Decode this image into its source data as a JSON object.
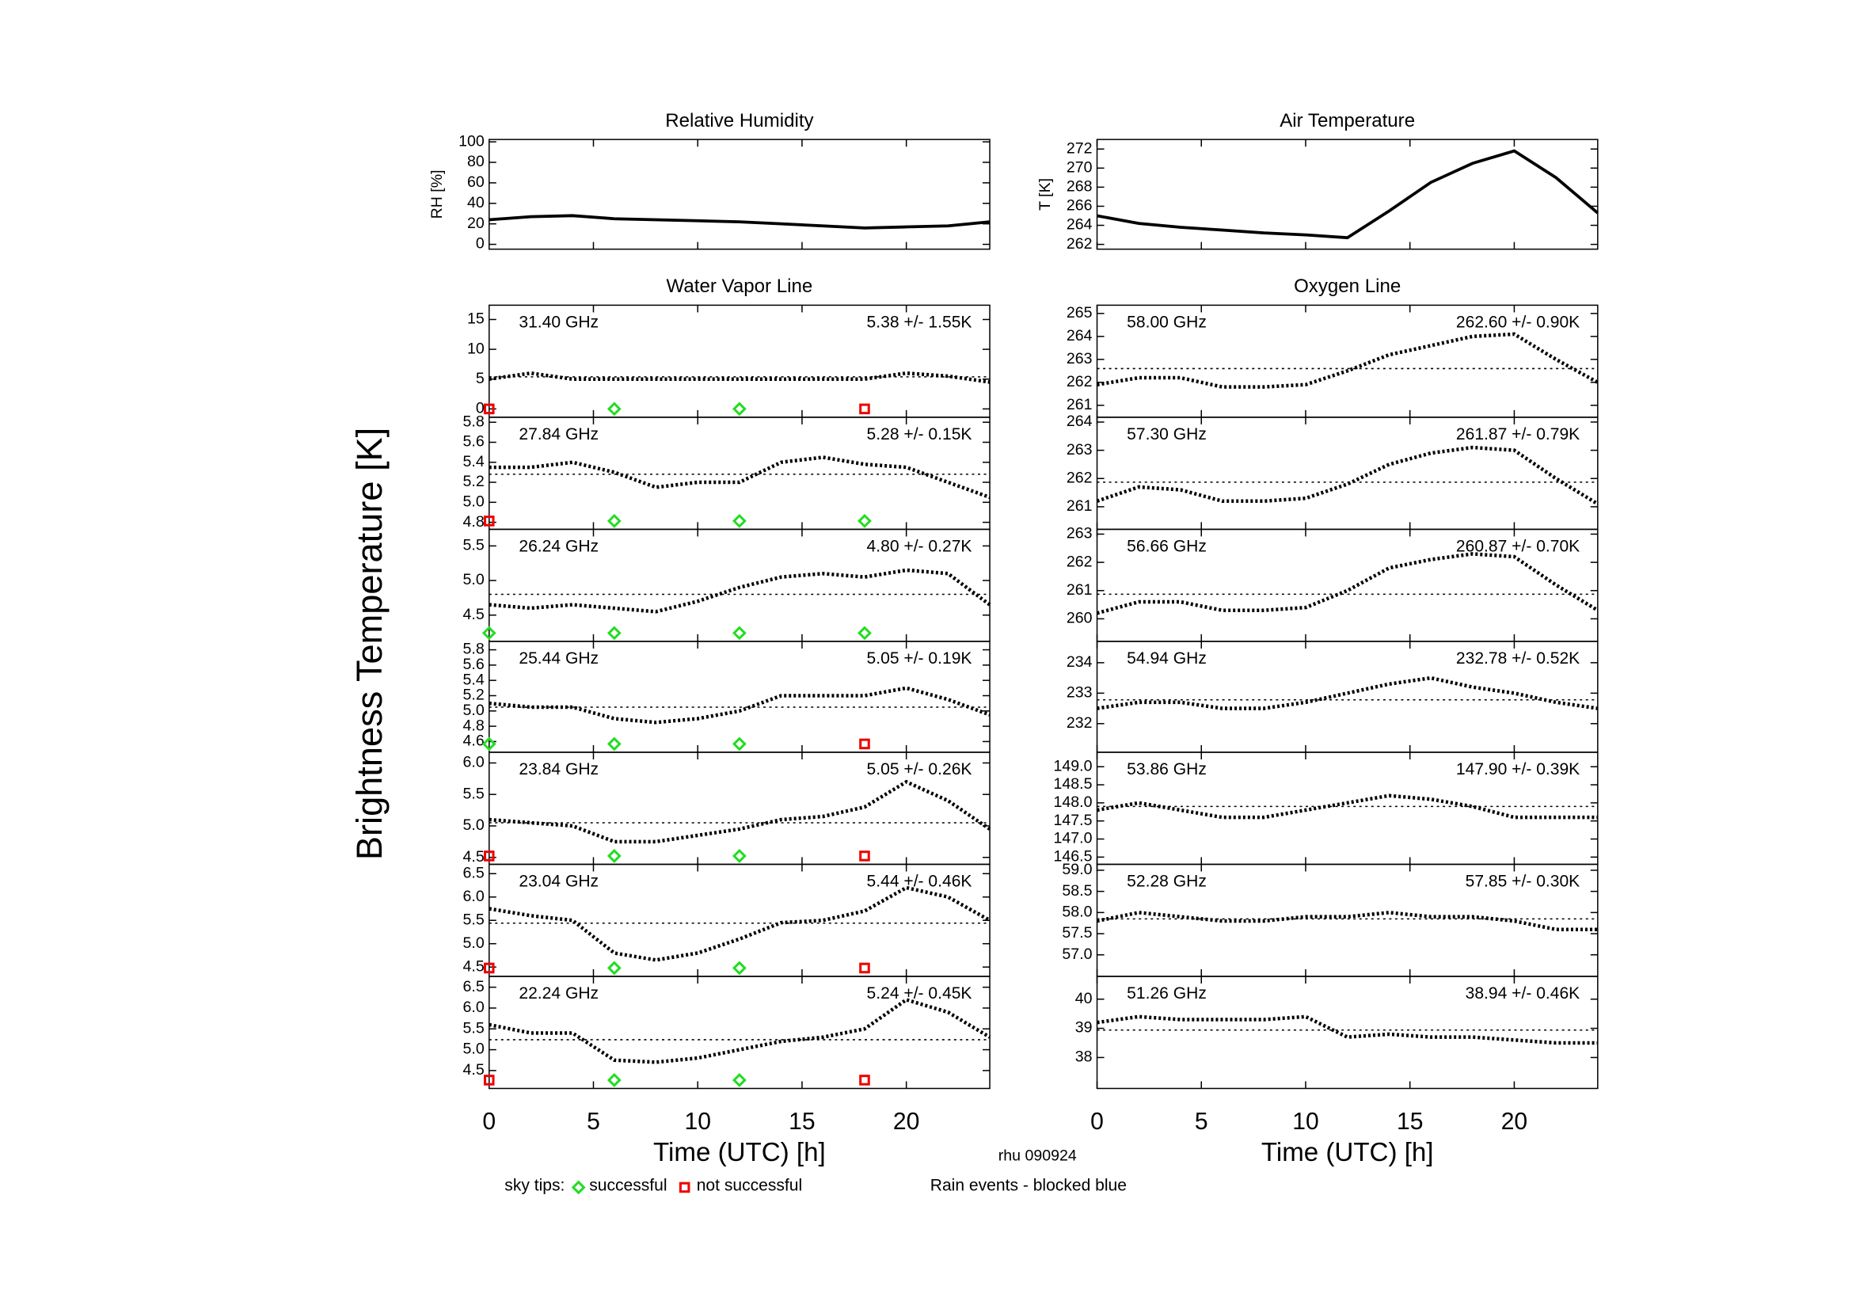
{
  "figure": {
    "ylabel": "Brightness Temperature [K]",
    "footer": "rhu 090924",
    "legend": {
      "label": "sky tips:",
      "items": [
        {
          "name": "successful",
          "color": "#22dd22"
        },
        {
          "name": "not successful",
          "color": "#ee0000"
        }
      ]
    },
    "rain_note": {
      "text": "Rain events - blocked blue",
      "color": "#33ddff"
    }
  },
  "chart_data": [
    {
      "type": "line",
      "title": "Relative Humidity",
      "ylabel": "RH [%]",
      "xlim": [
        0,
        24
      ],
      "xticks": [
        0,
        5,
        10,
        15,
        20
      ],
      "ylim": [
        -4.7,
        102.3
      ],
      "yticks": [
        0,
        20,
        40,
        60,
        80,
        100
      ],
      "x": [
        0,
        2,
        4,
        6,
        8,
        10,
        12,
        14,
        16,
        18,
        20,
        22,
        24
      ],
      "series": [
        {
          "color": "#000000",
          "values": [
            24,
            27,
            28,
            25,
            24,
            23,
            22,
            20,
            18,
            16,
            17,
            18,
            22
          ]
        }
      ]
    },
    {
      "type": "line",
      "title": "Air Temperature",
      "ylabel": "T [K]",
      "xlim": [
        0,
        24
      ],
      "xticks": [
        0,
        5,
        10,
        15,
        20
      ],
      "ylim": [
        261.5,
        273
      ],
      "yticks": [
        262,
        264,
        266,
        268,
        270,
        272
      ],
      "x": [
        0,
        2,
        4,
        6,
        8,
        10,
        12,
        14,
        16,
        18,
        20,
        22,
        24
      ],
      "series": [
        {
          "color": "#000000",
          "values": [
            265,
            264.2,
            263.8,
            263.5,
            263.2,
            263.0,
            262.7,
            265.5,
            268.5,
            270.5,
            271.8,
            269,
            265.3
          ]
        }
      ]
    },
    {
      "type": "scatter",
      "title": "Water Vapor Line",
      "xlim": [
        0,
        24
      ],
      "xticks": [
        0,
        5,
        10,
        15,
        20
      ],
      "ylim": [
        -1.4,
        17.4
      ],
      "yticks": [
        0,
        5,
        10,
        15
      ],
      "x": [
        0,
        2,
        4,
        6,
        8,
        10,
        12,
        14,
        16,
        18,
        20,
        22,
        24
      ],
      "series": [
        {
          "name": "31.40 GHz",
          "color": "#000000",
          "values": [
            5,
            6,
            5,
            5,
            5,
            5,
            5,
            5,
            5,
            5,
            6,
            5.5,
            4.5
          ]
        }
      ],
      "mean": 5.38,
      "annotation": "5.38 +/-  1.55K",
      "label_color": "#ff0000",
      "sky_tips": {
        "x": [
          0,
          6,
          12,
          18
        ],
        "successful": [
          false,
          true,
          true,
          false
        ]
      }
    },
    {
      "type": "scatter",
      "xlim": [
        0,
        24
      ],
      "xticks": [
        0,
        5,
        10,
        15,
        20
      ],
      "ylim": [
        4.73,
        5.85
      ],
      "yticks": [
        4.8,
        {
          "value": 5,
          "label": "5.0"
        },
        5.2,
        5.4,
        5.6,
        5.8
      ],
      "x": [
        0,
        2,
        4,
        6,
        8,
        10,
        12,
        14,
        16,
        18,
        20,
        22,
        24
      ],
      "series": [
        {
          "name": "27.84 GHz",
          "color": "#000000",
          "values": [
            5.35,
            5.35,
            5.4,
            5.3,
            5.15,
            5.2,
            5.2,
            5.4,
            5.45,
            5.38,
            5.35,
            5.2,
            5.05
          ]
        }
      ],
      "mean": 5.28,
      "annotation": "5.28 +/-  0.15K",
      "label_color": "#ff0000",
      "sky_tips": {
        "x": [
          0,
          6,
          12,
          18
        ],
        "successful": [
          false,
          true,
          true,
          true
        ]
      }
    },
    {
      "type": "scatter",
      "xlim": [
        0,
        24
      ],
      "xticks": [
        0,
        5,
        10,
        15,
        20
      ],
      "ylim": [
        4.12,
        5.74
      ],
      "yticks": [
        4.5,
        {
          "value": 5,
          "label": "5.0"
        },
        5.5
      ],
      "x": [
        0,
        2,
        4,
        6,
        8,
        10,
        12,
        14,
        16,
        18,
        20,
        22,
        24
      ],
      "series": [
        {
          "name": "26.24 GHz",
          "color": "#000000",
          "values": [
            4.65,
            4.6,
            4.65,
            4.6,
            4.55,
            4.7,
            4.9,
            5.05,
            5.1,
            5.05,
            5.15,
            5.1,
            4.65
          ]
        }
      ],
      "mean": 4.8,
      "annotation": "4.80 +/-  0.27K",
      "label_color": "#ff0000",
      "sky_tips": {
        "x": [
          0,
          6,
          12,
          18
        ],
        "successful": [
          true,
          true,
          true,
          true
        ]
      }
    },
    {
      "type": "scatter",
      "xlim": [
        0,
        24
      ],
      "xticks": [
        0,
        5,
        10,
        15,
        20
      ],
      "ylim": [
        4.46,
        5.91
      ],
      "yticks": [
        4.6,
        4.8,
        {
          "value": 5,
          "label": "5.0"
        },
        5.2,
        5.4,
        5.6,
        5.8
      ],
      "x": [
        0,
        2,
        4,
        6,
        8,
        10,
        12,
        14,
        16,
        18,
        20,
        22,
        24
      ],
      "series": [
        {
          "name": "25.44 GHz",
          "color": "#000000",
          "values": [
            5.1,
            5.05,
            5.05,
            4.9,
            4.85,
            4.9,
            5.0,
            5.2,
            5.2,
            5.2,
            5.3,
            5.15,
            4.95
          ]
        }
      ],
      "mean": 5.05,
      "annotation": "5.05 +/-  0.19K",
      "label_color": "#ff0000",
      "sky_tips": {
        "x": [
          0,
          6,
          12,
          18
        ],
        "successful": [
          true,
          true,
          true,
          false
        ]
      }
    },
    {
      "type": "scatter",
      "xlim": [
        0,
        24
      ],
      "xticks": [
        0,
        5,
        10,
        15,
        20
      ],
      "ylim": [
        4.39,
        6.17
      ],
      "yticks": [
        4.5,
        {
          "value": 5,
          "label": "5.0"
        },
        5.5,
        {
          "value": 6,
          "label": "6.0"
        }
      ],
      "x": [
        0,
        2,
        4,
        6,
        8,
        10,
        12,
        14,
        16,
        18,
        20,
        22,
        24
      ],
      "series": [
        {
          "name": "23.84 GHz",
          "color": "#000000",
          "values": [
            5.1,
            5.05,
            5.0,
            4.75,
            4.75,
            4.85,
            4.95,
            5.1,
            5.15,
            5.3,
            5.7,
            5.4,
            4.95
          ]
        }
      ],
      "mean": 5.05,
      "annotation": "5.05 +/-  0.26K",
      "label_color": "#ff0000",
      "sky_tips": {
        "x": [
          0,
          6,
          12,
          18
        ],
        "successful": [
          false,
          true,
          true,
          false
        ]
      }
    },
    {
      "type": "scatter",
      "xlim": [
        0,
        24
      ],
      "xticks": [
        0,
        5,
        10,
        15,
        20
      ],
      "ylim": [
        4.3,
        6.7
      ],
      "yticks": [
        4.5,
        {
          "value": 5,
          "label": "5.0"
        },
        5.5,
        {
          "value": 6,
          "label": "6.0"
        },
        6.5
      ],
      "x": [
        0,
        2,
        4,
        6,
        8,
        10,
        12,
        14,
        16,
        18,
        20,
        22,
        24
      ],
      "series": [
        {
          "name": "23.04 GHz",
          "color": "#000000",
          "values": [
            5.75,
            5.6,
            5.5,
            4.8,
            4.65,
            4.8,
            5.1,
            5.45,
            5.5,
            5.7,
            6.2,
            6.0,
            5.5
          ]
        }
      ],
      "mean": 5.44,
      "annotation": "5.44 +/-  0.46K",
      "label_color": "#ff0000",
      "sky_tips": {
        "x": [
          0,
          6,
          12,
          18
        ],
        "successful": [
          false,
          true,
          true,
          false
        ]
      }
    },
    {
      "type": "scatter",
      "xlabel": "Time (UTC) [h]",
      "xlim": [
        0,
        24
      ],
      "xticks": [
        0,
        5,
        10,
        15,
        20
      ],
      "ylim": [
        4.07,
        6.76
      ],
      "yticks": [
        4.5,
        {
          "value": 5,
          "label": "5.0"
        },
        5.5,
        {
          "value": 6,
          "label": "6.0"
        },
        6.5
      ],
      "x": [
        0,
        2,
        4,
        6,
        8,
        10,
        12,
        14,
        16,
        18,
        20,
        22,
        24
      ],
      "series": [
        {
          "name": "22.24 GHz",
          "color": "#000000",
          "values": [
            5.6,
            5.4,
            5.4,
            4.75,
            4.7,
            4.8,
            5.0,
            5.2,
            5.3,
            5.5,
            6.2,
            5.9,
            5.3
          ]
        }
      ],
      "mean": 5.24,
      "annotation": "5.24 +/-  0.45K",
      "label_color": "#ff0000",
      "sky_tips": {
        "x": [
          0,
          6,
          12,
          18
        ],
        "successful": [
          false,
          true,
          true,
          false
        ]
      }
    },
    {
      "type": "scatter",
      "title": "Oxygen Line",
      "xlim": [
        0,
        24
      ],
      "xticks": [
        0,
        5,
        10,
        15,
        20
      ],
      "ylim": [
        260.48,
        265.36
      ],
      "yticks": [
        261,
        262,
        263,
        264,
        265
      ],
      "x": [
        0,
        2,
        4,
        6,
        8,
        10,
        12,
        14,
        16,
        18,
        20,
        22,
        24
      ],
      "series": [
        {
          "name": "58.00 GHz",
          "color": "#000000",
          "values": [
            261.9,
            262.2,
            262.2,
            261.8,
            261.8,
            261.9,
            262.5,
            263.2,
            263.6,
            264.0,
            264.1,
            263.0,
            262.0
          ]
        }
      ],
      "mean": 262.6,
      "annotation": "262.60 +/-  0.90K",
      "label_color": "#ff0000"
    },
    {
      "type": "scatter",
      "xlim": [
        0,
        24
      ],
      "xticks": [
        0,
        5,
        10,
        15,
        20
      ],
      "ylim": [
        260.2,
        264.17
      ],
      "yticks": [
        261,
        262,
        263,
        264
      ],
      "x": [
        0,
        2,
        4,
        6,
        8,
        10,
        12,
        14,
        16,
        18,
        20,
        22,
        24
      ],
      "series": [
        {
          "name": "57.30 GHz",
          "color": "#000000",
          "values": [
            261.2,
            261.7,
            261.6,
            261.2,
            261.2,
            261.3,
            261.8,
            262.5,
            262.9,
            263.1,
            263.0,
            262.0,
            261.1
          ]
        }
      ],
      "mean": 261.87,
      "annotation": "261.87 +/-  0.79K",
      "label_color": "#ff0000"
    },
    {
      "type": "scatter",
      "xlim": [
        0,
        24
      ],
      "xticks": [
        0,
        5,
        10,
        15,
        20
      ],
      "ylim": [
        259.2,
        263.17
      ],
      "yticks": [
        260,
        261,
        262,
        263
      ],
      "x": [
        0,
        2,
        4,
        6,
        8,
        10,
        12,
        14,
        16,
        18,
        20,
        22,
        24
      ],
      "series": [
        {
          "name": "56.66 GHz",
          "color": "#000000",
          "values": [
            260.2,
            260.6,
            260.6,
            260.3,
            260.3,
            260.4,
            261.0,
            261.8,
            262.1,
            262.3,
            262.2,
            261.2,
            260.3
          ]
        }
      ],
      "mean": 260.87,
      "annotation": "260.87 +/-  0.70K",
      "label_color": "#ff0000"
    },
    {
      "type": "scatter",
      "xlim": [
        0,
        24
      ],
      "xticks": [
        0,
        5,
        10,
        15,
        20
      ],
      "ylim": [
        231.06,
        234.7
      ],
      "yticks": [
        232,
        233,
        234
      ],
      "x": [
        0,
        2,
        4,
        6,
        8,
        10,
        12,
        14,
        16,
        18,
        20,
        22,
        24
      ],
      "series": [
        {
          "name": "54.94 GHz",
          "color": "#000000",
          "values": [
            232.5,
            232.7,
            232.7,
            232.5,
            232.5,
            232.7,
            233.0,
            233.3,
            233.5,
            233.2,
            233.0,
            232.7,
            232.5
          ]
        }
      ],
      "mean": 232.78,
      "annotation": "232.78 +/-  0.52K",
      "label_color": "#ff0000"
    },
    {
      "type": "scatter",
      "xlim": [
        0,
        24
      ],
      "xticks": [
        0,
        5,
        10,
        15,
        20
      ],
      "ylim": [
        146.3,
        149.4
      ],
      "yticks": [
        146.5,
        {
          "value": 147,
          "label": "147.0"
        },
        147.5,
        {
          "value": 148,
          "label": "148.0"
        },
        148.5,
        {
          "value": 149,
          "label": "149.0"
        }
      ],
      "x": [
        0,
        2,
        4,
        6,
        8,
        10,
        12,
        14,
        16,
        18,
        20,
        22,
        24
      ],
      "series": [
        {
          "name": "53.86 GHz",
          "color": "#000000",
          "values": [
            147.8,
            148.0,
            147.8,
            147.6,
            147.6,
            147.8,
            148.0,
            148.2,
            148.1,
            147.9,
            147.6,
            147.6,
            147.6
          ]
        }
      ],
      "mean": 147.9,
      "annotation": "147.90 +/-  0.39K",
      "label_color": "#ff0000"
    },
    {
      "type": "scatter",
      "xlim": [
        0,
        24
      ],
      "xticks": [
        0,
        5,
        10,
        15,
        20
      ],
      "ylim": [
        56.49,
        59.14
      ],
      "yticks": [
        {
          "value": 57,
          "label": "57.0"
        },
        57.5,
        {
          "value": 58,
          "label": "58.0"
        },
        58.5,
        {
          "value": 59,
          "label": "59.0"
        }
      ],
      "x": [
        0,
        2,
        4,
        6,
        8,
        10,
        12,
        14,
        16,
        18,
        20,
        22,
        24
      ],
      "series": [
        {
          "name": "52.28 GHz",
          "color": "#000000",
          "values": [
            57.8,
            58.0,
            57.9,
            57.8,
            57.8,
            57.9,
            57.9,
            58.0,
            57.9,
            57.9,
            57.8,
            57.6,
            57.6
          ]
        }
      ],
      "mean": 57.85,
      "annotation": "57.85 +/-  0.30K",
      "label_color": "#ff0000"
    },
    {
      "type": "scatter",
      "xlabel": "Time (UTC) [h]",
      "xlim": [
        0,
        24
      ],
      "xticks": [
        0,
        5,
        10,
        15,
        20
      ],
      "ylim": [
        36.94,
        40.78
      ],
      "yticks": [
        38,
        39,
        40
      ],
      "x": [
        0,
        2,
        4,
        6,
        8,
        10,
        12,
        14,
        16,
        18,
        20,
        22,
        24
      ],
      "series": [
        {
          "name": "51.26 GHz",
          "color": "#000000",
          "values": [
            39.2,
            39.4,
            39.3,
            39.3,
            39.3,
            39.4,
            38.7,
            38.8,
            38.7,
            38.7,
            38.6,
            38.5,
            38.5
          ]
        }
      ],
      "mean": 38.94,
      "annotation": "38.94 +/-  0.46K",
      "label_color": "#ff0000"
    }
  ]
}
